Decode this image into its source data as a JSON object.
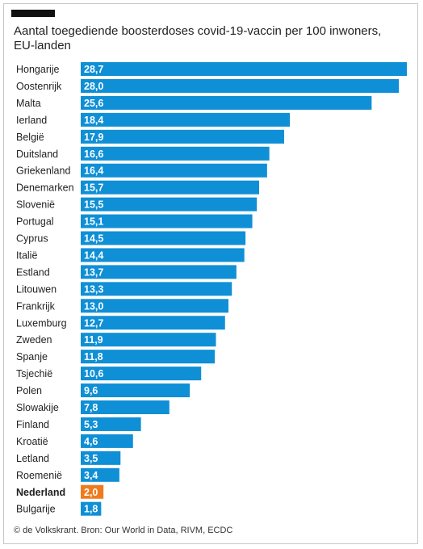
{
  "title": "Aantal toegediende boosterdoses covid-19-vaccin per 100 inwoners, EU-landen",
  "source": "© de Volkskrant. Bron: Our World in Data, RIVM, ECDC",
  "colors": {
    "bar": "#0f8fd6",
    "highlight": "#ef7b1f",
    "label_text": "#ffffff"
  },
  "chart_data": {
    "type": "bar",
    "orientation": "horizontal",
    "highlight_category": "Nederland",
    "categories": [
      "Hongarije",
      "Oostenrijk",
      "Malta",
      "Ierland",
      "België",
      "Duitsland",
      "Griekenland",
      "Denemarken",
      "Slovenië",
      "Portugal",
      "Cyprus",
      "Italië",
      "Estland",
      "Litouwen",
      "Frankrijk",
      "Luxemburg",
      "Zweden",
      "Spanje",
      "Tsjechië",
      "Polen",
      "Slowakije",
      "Finland",
      "Kroatië",
      "Letland",
      "Roemenië",
      "Nederland",
      "Bulgarije"
    ],
    "values": [
      28.7,
      28.0,
      25.6,
      18.4,
      17.9,
      16.6,
      16.4,
      15.7,
      15.5,
      15.1,
      14.5,
      14.4,
      13.7,
      13.3,
      13.0,
      12.7,
      11.9,
      11.8,
      10.6,
      9.6,
      7.8,
      5.3,
      4.6,
      3.5,
      3.4,
      2.0,
      1.8
    ],
    "value_labels": [
      "28,7",
      "28,0",
      "25,6",
      "18,4",
      "17,9",
      "16,6",
      "16,4",
      "15,7",
      "15,5",
      "15,1",
      "14,5",
      "14,4",
      "13,7",
      "13,3",
      "13,0",
      "12,7",
      "11,9",
      "11,8",
      "10,6",
      "9,6",
      "7,8",
      "5,3",
      "4,6",
      "3,5",
      "3,4",
      "2,0",
      "1,8"
    ],
    "xlim": [
      0,
      28.7
    ],
    "grid": false
  }
}
